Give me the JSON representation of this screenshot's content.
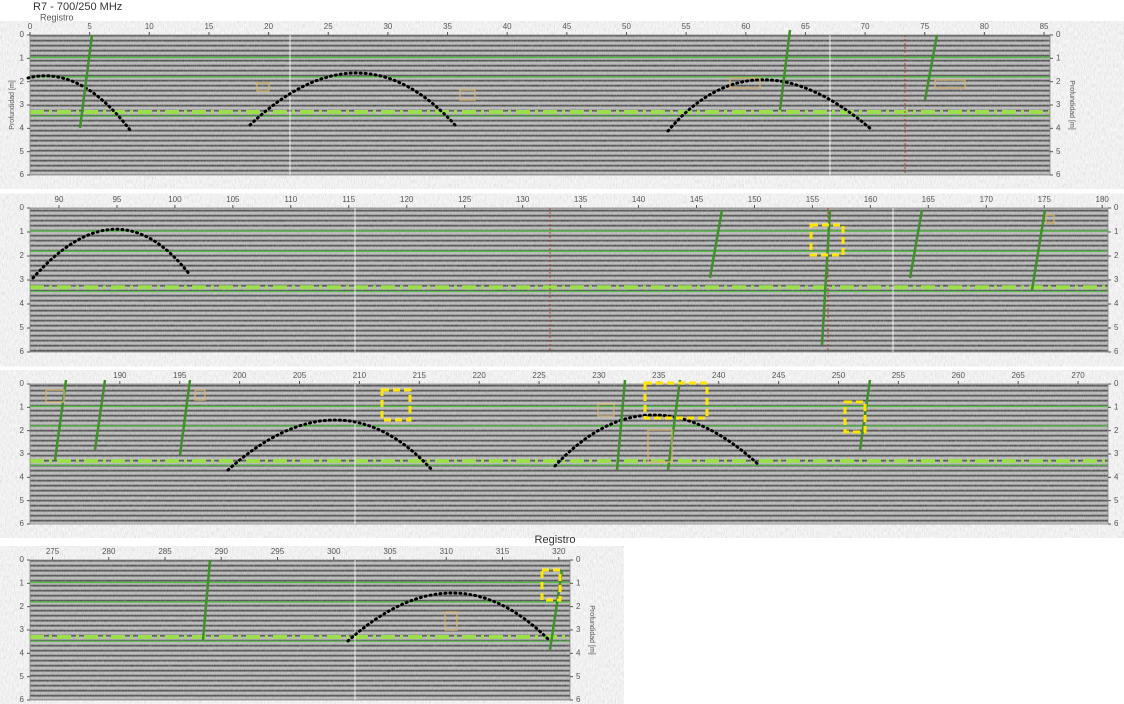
{
  "chart_data": [
    {
      "type": "radargram",
      "title": "R7 - 700/250 MHz",
      "xlabel": "Registro",
      "ylabel": "Profundidad [m]",
      "xlim": [
        0,
        85.5
      ],
      "ylim": [
        0,
        6
      ],
      "y_inverted": true,
      "xticks": [
        0,
        5,
        10,
        15,
        20,
        25,
        30,
        35,
        40,
        45,
        50,
        55,
        60,
        65,
        70,
        75,
        80,
        85
      ],
      "yticks": [
        0,
        1,
        2,
        3,
        4,
        5,
        6
      ]
    },
    {
      "type": "radargram",
      "xlim": [
        87.5,
        180.5
      ],
      "ylim": [
        0,
        6
      ],
      "y_inverted": true,
      "xticks": [
        90,
        95,
        100,
        105,
        110,
        115,
        120,
        125,
        130,
        135,
        140,
        145,
        150,
        155,
        160,
        165,
        170,
        175,
        180
      ],
      "yticks": [
        0,
        1,
        2,
        3,
        4,
        5,
        6
      ]
    },
    {
      "type": "radargram",
      "xlim": [
        182.5,
        272.5
      ],
      "ylim": [
        0,
        6
      ],
      "y_inverted": true,
      "xticks": [
        190,
        195,
        200,
        205,
        210,
        215,
        220,
        225,
        230,
        235,
        240,
        245,
        250,
        255,
        260,
        265,
        270
      ],
      "yticks": [
        0,
        1,
        2,
        3,
        4,
        5,
        6
      ]
    },
    {
      "type": "radargram",
      "xlabel": "Registro",
      "ylabel": "Profundidad [m]",
      "xlim": [
        273,
        321
      ],
      "ylim": [
        0,
        6
      ],
      "y_inverted": true,
      "xticks": [
        275,
        280,
        285,
        290,
        295,
        300,
        305,
        310,
        315,
        320
      ],
      "yticks": [
        0,
        1,
        2,
        3,
        4,
        5,
        6
      ]
    }
  ]
}
